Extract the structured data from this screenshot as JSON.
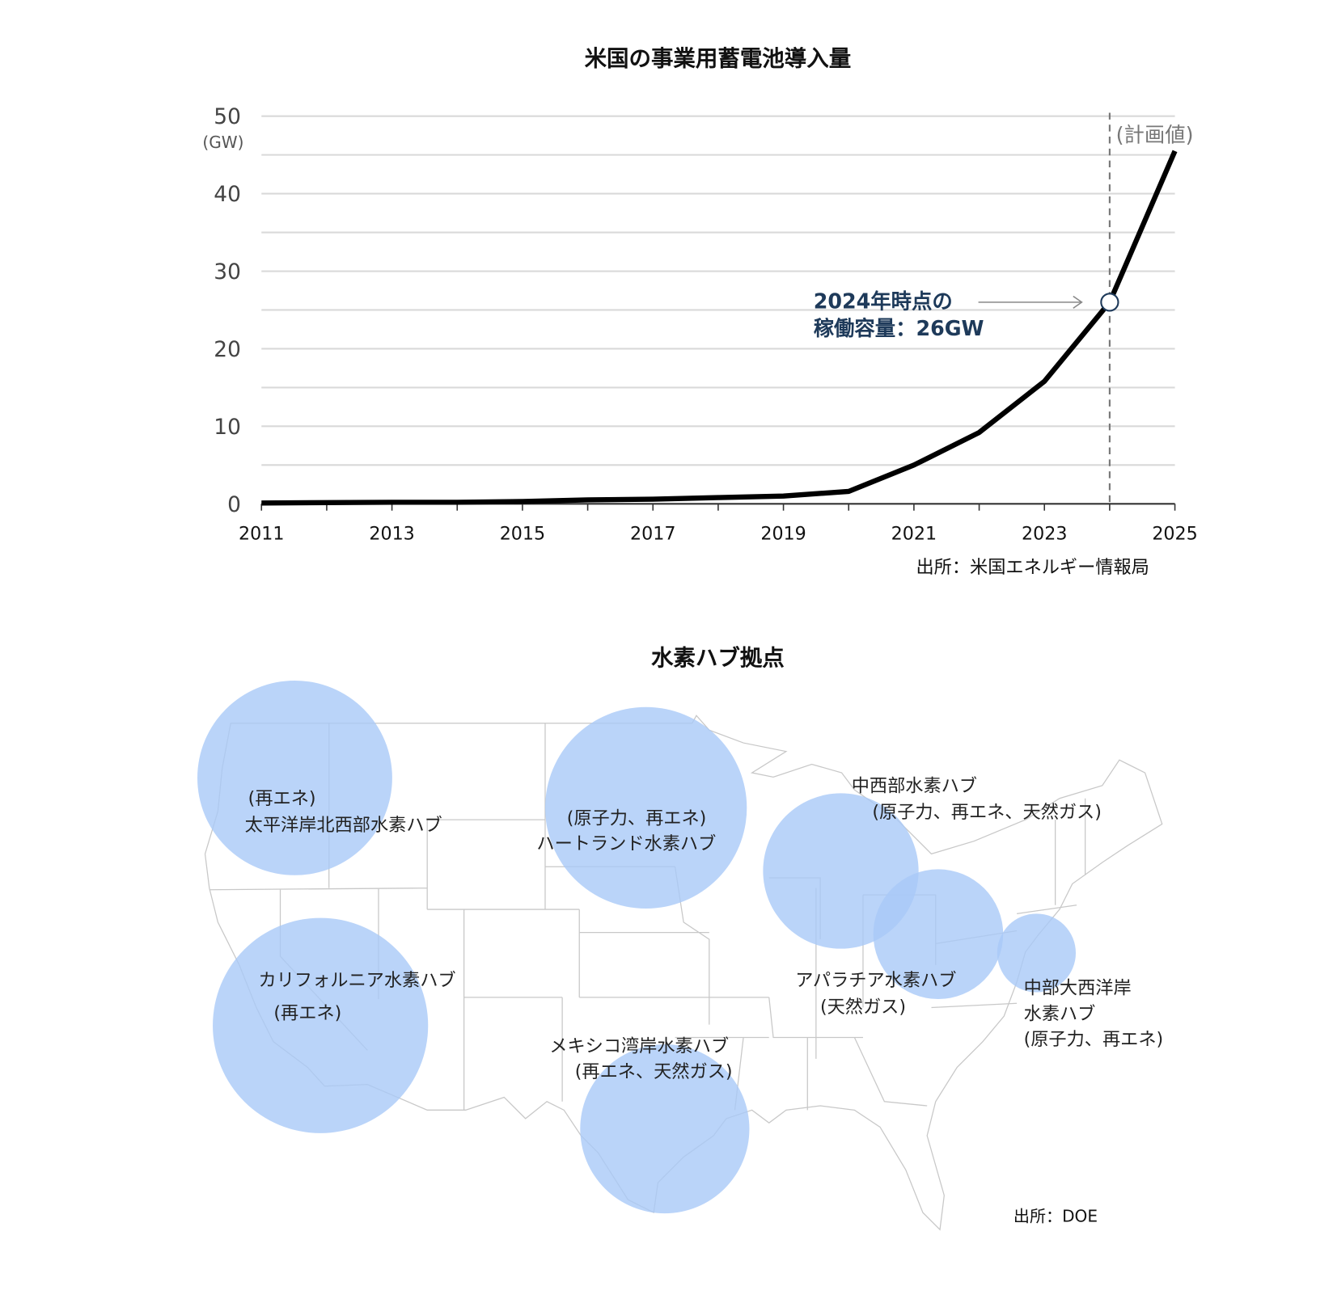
{
  "chart_data": [
    {
      "type": "line",
      "title": "米国の事業用蓄電池導入量",
      "ylabel": "(GW)",
      "x": [
        2011,
        2012,
        2013,
        2014,
        2015,
        2016,
        2017,
        2018,
        2019,
        2020,
        2021,
        2022,
        2023,
        2024,
        2025
      ],
      "values": [
        0.1,
        0.15,
        0.2,
        0.2,
        0.3,
        0.5,
        0.6,
        0.8,
        1.0,
        1.6,
        5.0,
        9.2,
        15.8,
        26,
        45.5
      ],
      "xticks": [
        "2011",
        "2013",
        "2015",
        "2017",
        "2019",
        "2021",
        "2023",
        "2025"
      ],
      "yticks": [
        "0",
        "10",
        "20",
        "30",
        "40",
        "50"
      ],
      "ylim": [
        0,
        50
      ],
      "xlim": [
        2011,
        2025
      ],
      "grid": true,
      "series_color": "#000000",
      "annotation": {
        "line1": "2024年時点の",
        "line2": "稼働容量：26GW",
        "x": 2024,
        "y": 26,
        "color": "#1e3a5a"
      },
      "planned_marker": {
        "x": 2024,
        "label": "(計画値)"
      },
      "source": "出所：米国エネルギー情報局"
    }
  ],
  "map": {
    "title": "水素ハブ拠点",
    "bubble_color": "#a9c9f7",
    "hubs": [
      {
        "name": "太平洋岸北西部水素ハブ",
        "source": "(再エネ)"
      },
      {
        "name": "ハートランド水素ハブ",
        "source": "(原子力、再エネ)"
      },
      {
        "name": "中西部水素ハブ",
        "source": "(原子力、再エネ、天然ガス)"
      },
      {
        "name": "アパラチア水素ハブ",
        "source": "(天然ガス)"
      },
      {
        "name_line1": "中部大西洋岸",
        "name_line2": "水素ハブ",
        "source": "(原子力、再エネ)"
      },
      {
        "name": "カリフォルニア水素ハブ",
        "source": "(再エネ)"
      },
      {
        "name": "メキシコ湾岸水素ハブ",
        "source": "(再エネ、天然ガス)"
      }
    ],
    "source": "出所：DOE"
  }
}
